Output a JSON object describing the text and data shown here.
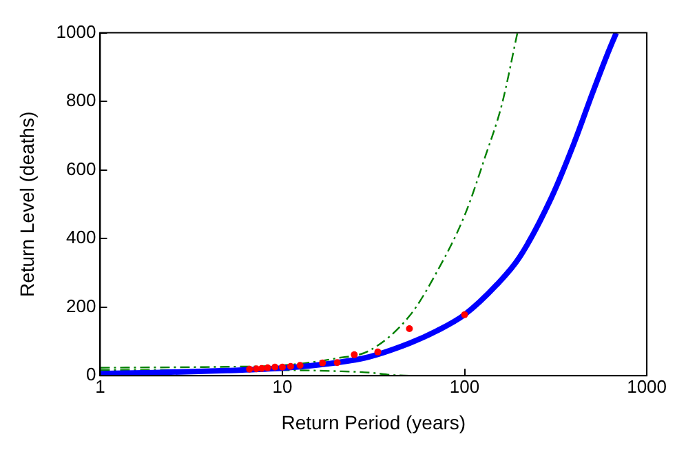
{
  "chart_data": {
    "type": "line",
    "xlabel": "Return Period (years)",
    "ylabel": "Return Level (deaths)",
    "log": "x",
    "xlim": [
      1,
      1000
    ],
    "xticks": [
      1,
      10,
      100,
      1000
    ],
    "ylim": [
      0,
      1000
    ],
    "yticks": [
      0,
      200,
      400,
      600,
      800,
      1000
    ],
    "grid": false,
    "legend": false,
    "series": [
      {
        "color": "#0000ff",
        "marker": "none",
        "line_style": "solid",
        "x": [
          1,
          2,
          5,
          10,
          20,
          30,
          50,
          70,
          100,
          150,
          200,
          300,
          400,
          500,
          600,
          680
        ],
        "values": [
          6,
          9,
          15,
          22,
          38,
          55,
          95,
          130,
          178,
          265,
          345,
          520,
          680,
          820,
          930,
          1000
        ]
      },
      {
        "color": "#008000",
        "marker": "none",
        "line_style": "dashed",
        "x": [
          1,
          2,
          5,
          10,
          20,
          30,
          50,
          70,
          100,
          130,
          160,
          195
        ],
        "values": [
          23,
          24,
          26,
          30,
          51,
          73,
          175,
          300,
          467,
          640,
          790,
          1000
        ]
      },
      {
        "color": "#008000",
        "marker": "none",
        "line_style": "dashed",
        "x": [
          1,
          2,
          5,
          10,
          20,
          30,
          40,
          50
        ],
        "values": [
          16,
          16,
          16,
          16,
          13,
          9,
          2,
          0
        ]
      },
      {
        "type": "scatter",
        "color": "#ff0000",
        "marker": "circle",
        "x": [
          6.6,
          7.2,
          7.7,
          8.3,
          9.1,
          10,
          11.1,
          12.5,
          16.6,
          20,
          24.8,
          33.4,
          49.8,
          100
        ],
        "values": [
          19,
          20,
          21,
          23,
          25,
          25,
          27,
          30,
          37,
          38,
          61,
          69,
          137,
          178
        ]
      }
    ]
  }
}
